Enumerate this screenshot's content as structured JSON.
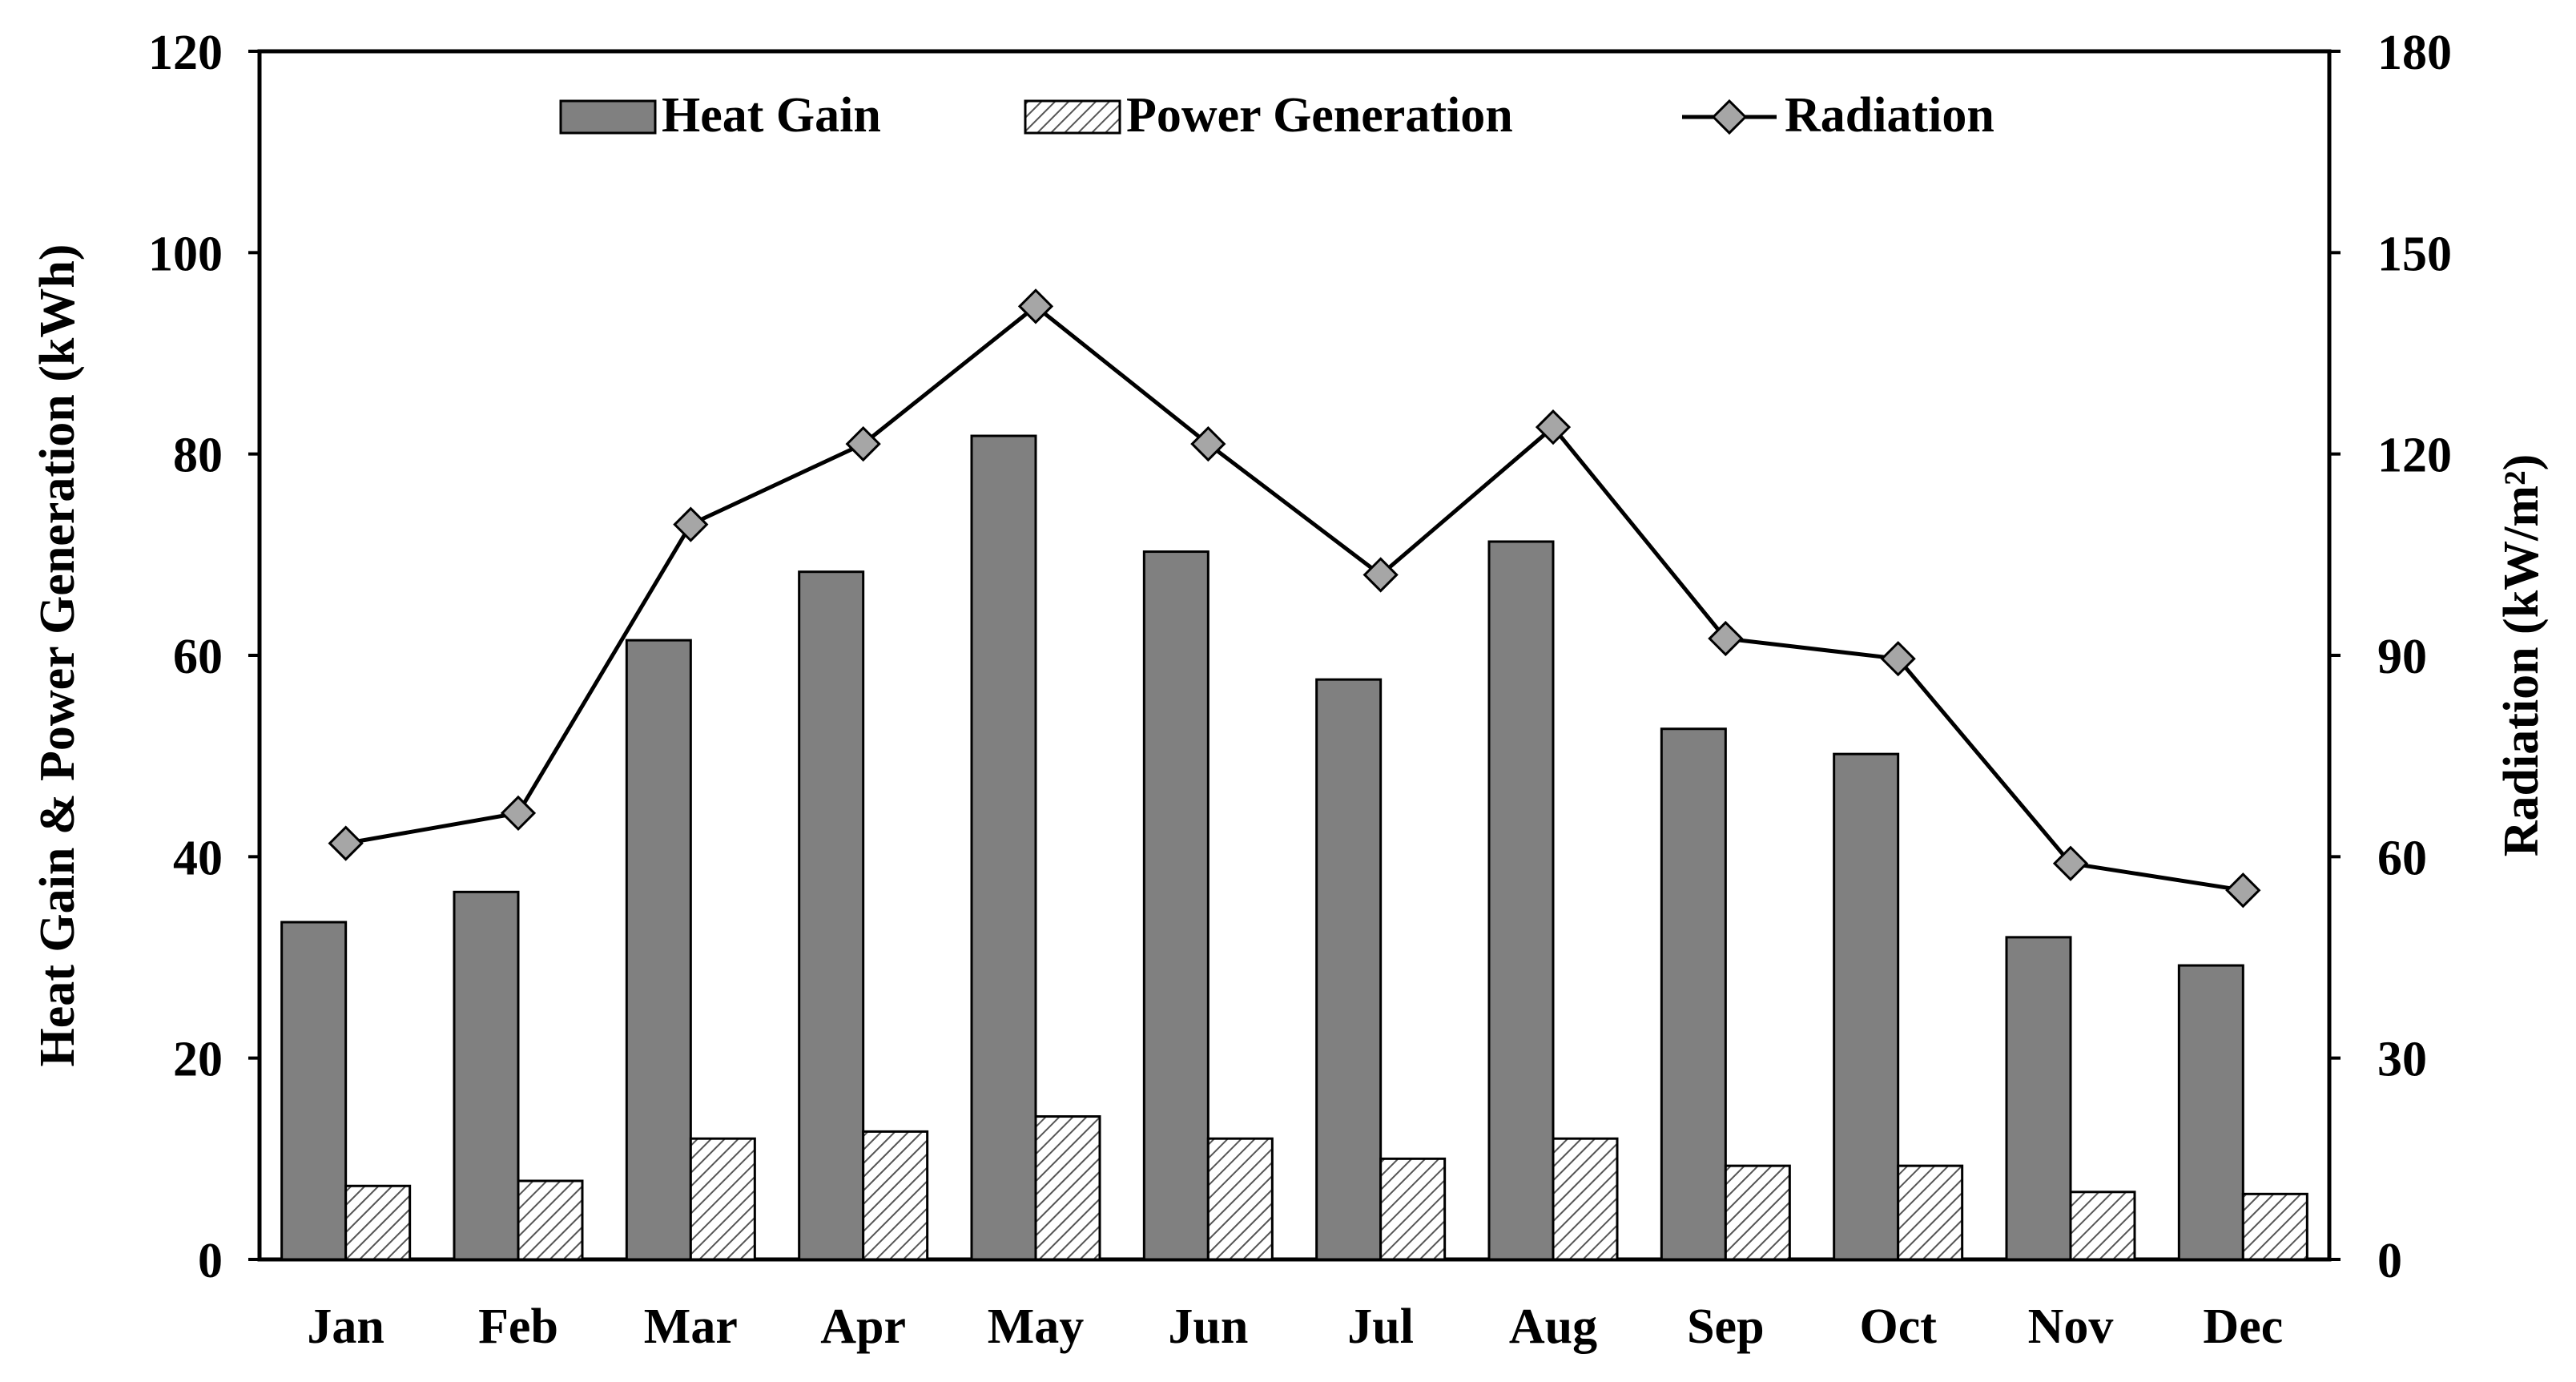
{
  "chart_data": {
    "type": "bar",
    "categories": [
      "Jan",
      "Feb",
      "Mar",
      "Apr",
      "May",
      "Jun",
      "Jul",
      "Aug",
      "Sep",
      "Oct",
      "Nov",
      "Dec"
    ],
    "series": [
      {
        "name": "Heat Gain",
        "kind": "bar",
        "axis": "left",
        "color": "#808080",
        "values": [
          33.5,
          36.5,
          61.5,
          68.3,
          81.8,
          70.3,
          57.6,
          71.3,
          52.7,
          50.2,
          32.0,
          29.2
        ]
      },
      {
        "name": "Power Generation",
        "kind": "bar",
        "axis": "left",
        "pattern": "diagonal-hatch",
        "values": [
          7.3,
          7.8,
          12.0,
          12.7,
          14.2,
          12.0,
          10.0,
          12.0,
          9.3,
          9.3,
          6.7,
          6.5
        ]
      },
      {
        "name": "Radiation",
        "kind": "line",
        "axis": "right",
        "color": "#000000",
        "marker": "diamond",
        "marker_color": "#a6a6a6",
        "values": [
          62.0,
          66.5,
          109.5,
          121.5,
          142.0,
          121.5,
          102.0,
          124.0,
          92.5,
          89.5,
          59.0,
          55.0
        ]
      }
    ],
    "ylabel": "Heat Gain & Power Generation (kWh)",
    "y2label": "Radiation (kW/m²)",
    "ylim": [
      0,
      120
    ],
    "y2lim": [
      0,
      180
    ],
    "yticks": [
      "0",
      "20",
      "40",
      "60",
      "80",
      "100",
      "120"
    ],
    "y2ticks": [
      "0",
      "30",
      "60",
      "90",
      "120",
      "150",
      "180"
    ],
    "grid": false,
    "legend_position": "top-center"
  }
}
